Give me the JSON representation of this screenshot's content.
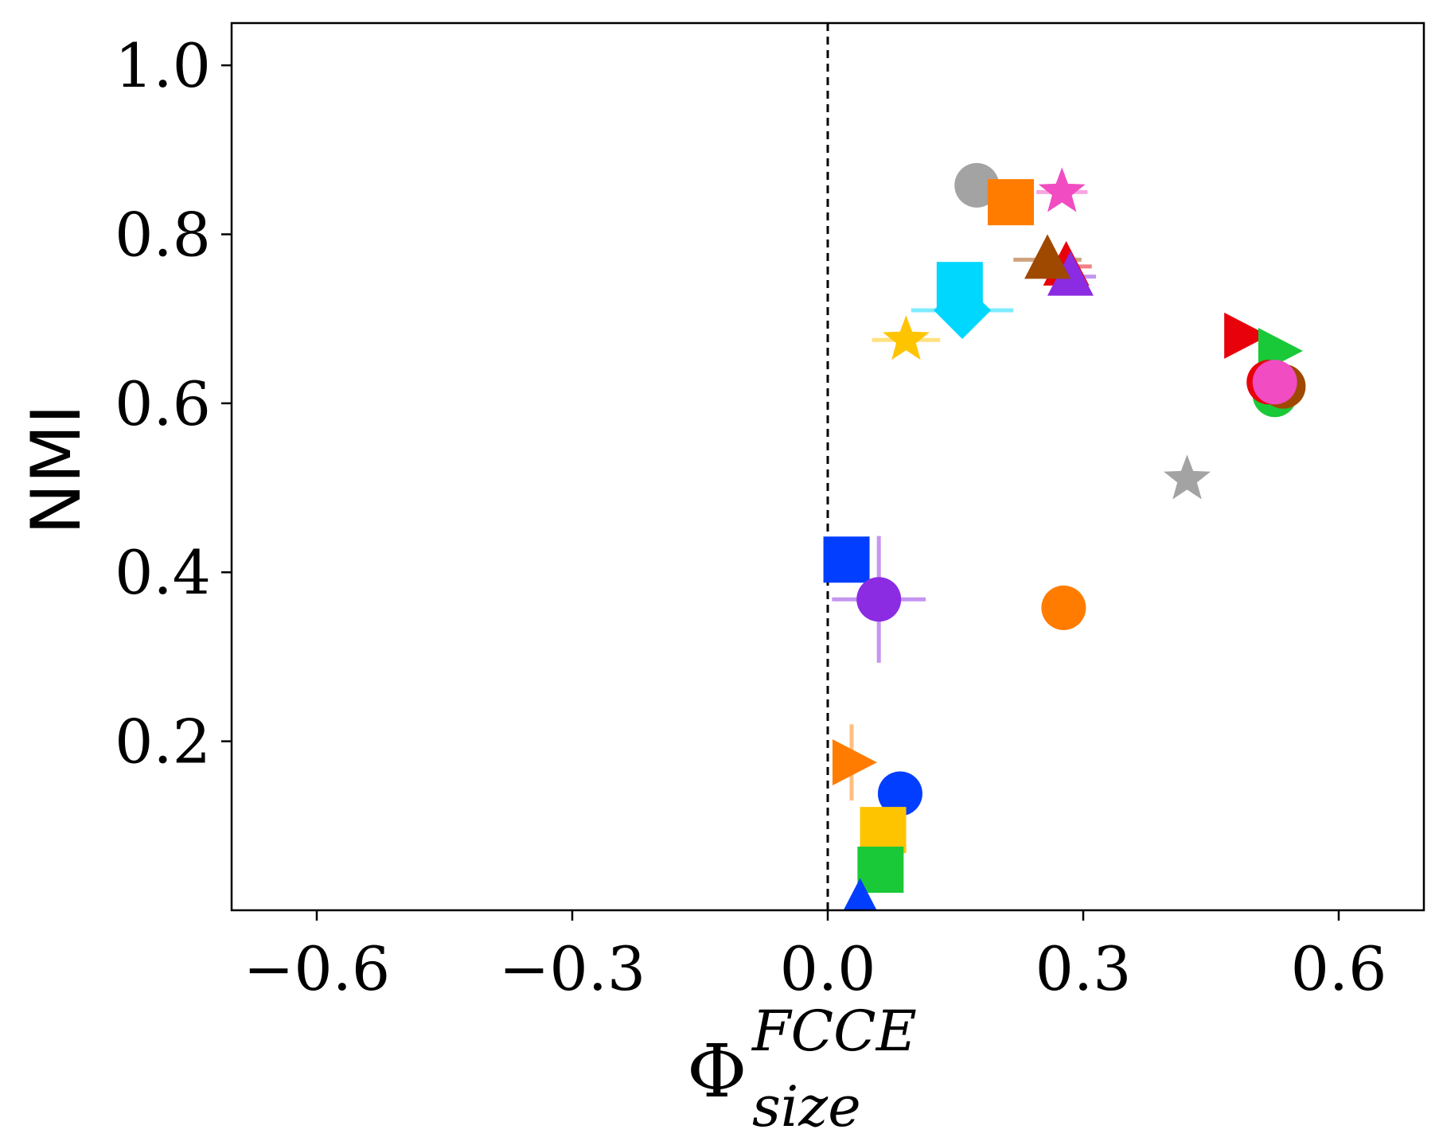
{
  "chart_data": {
    "type": "scatter",
    "title": "",
    "xlabel": {
      "base": "Φ",
      "superscript": "FCCE",
      "subscript": "size"
    },
    "ylabel": "NMI",
    "xlim": [
      -0.7,
      0.7
    ],
    "ylim": [
      0.0,
      1.05
    ],
    "xticks": [
      -0.6,
      -0.3,
      0.0,
      0.3,
      0.6
    ],
    "xtick_labels": [
      "−0.6",
      "−0.3",
      "0.0",
      "0.3",
      "0.6"
    ],
    "yticks": [
      0.2,
      0.4,
      0.6,
      0.8,
      1.0
    ],
    "ytick_labels": [
      "0.2",
      "0.4",
      "0.6",
      "0.8",
      "1.0"
    ],
    "reference_line": {
      "x": 0.0,
      "style": "dashed",
      "color": "#000000"
    },
    "grid": false,
    "points": [
      {
        "x": 0.175,
        "y": 0.858,
        "marker": "circle",
        "color": "#a3a3a3"
      },
      {
        "x": 0.215,
        "y": 0.838,
        "marker": "square",
        "color": "#ff7c00",
        "xerr": 0.025
      },
      {
        "x": 0.275,
        "y": 0.85,
        "marker": "star",
        "color": "#f14cc1",
        "xerr": 0.03
      },
      {
        "x": 0.28,
        "y": 0.762,
        "marker": "triangle-up",
        "color": "#e8000b",
        "xerr": 0.03
      },
      {
        "x": 0.285,
        "y": 0.75,
        "marker": "triangle-up",
        "color": "#8b2be2",
        "xerr": 0.03
      },
      {
        "x": 0.258,
        "y": 0.77,
        "marker": "triangle-up",
        "color": "#9f4800",
        "xerr": 0.04
      },
      {
        "x": 0.155,
        "y": 0.74,
        "marker": "square",
        "color": "#00d7ff",
        "xerr": 0.025
      },
      {
        "x": 0.158,
        "y": 0.71,
        "marker": "diamond",
        "color": "#00d7ff",
        "xerr": 0.06
      },
      {
        "x": 0.092,
        "y": 0.675,
        "marker": "star",
        "color": "#ffc400",
        "xerr": 0.04
      },
      {
        "x": 0.488,
        "y": 0.68,
        "marker": "triangle-right",
        "color": "#e8000b",
        "xerr": 0.02
      },
      {
        "x": 0.528,
        "y": 0.662,
        "marker": "triangle-right",
        "color": "#1ac938"
      },
      {
        "x": 0.525,
        "y": 0.61,
        "marker": "circle",
        "color": "#1ac938"
      },
      {
        "x": 0.535,
        "y": 0.62,
        "marker": "circle",
        "color": "#9f4800"
      },
      {
        "x": 0.518,
        "y": 0.625,
        "marker": "circle",
        "color": "#e8000b"
      },
      {
        "x": 0.525,
        "y": 0.625,
        "marker": "circle",
        "color": "#f14cc1"
      },
      {
        "x": 0.422,
        "y": 0.51,
        "marker": "star",
        "color": "#a3a3a3"
      },
      {
        "x": 0.022,
        "y": 0.415,
        "marker": "square",
        "color": "#023eff"
      },
      {
        "x": 0.06,
        "y": 0.368,
        "marker": "circle",
        "color": "#8b2be2",
        "xerr": 0.055,
        "yerr": 0.075
      },
      {
        "x": 0.277,
        "y": 0.358,
        "marker": "circle",
        "color": "#ff7c00"
      },
      {
        "x": 0.028,
        "y": 0.175,
        "marker": "triangle-right",
        "color": "#ff7c00",
        "yerr": 0.045
      },
      {
        "x": 0.085,
        "y": 0.138,
        "marker": "circle",
        "color": "#023eff"
      },
      {
        "x": 0.065,
        "y": 0.095,
        "marker": "square",
        "color": "#ffc400"
      },
      {
        "x": 0.062,
        "y": 0.048,
        "marker": "square",
        "color": "#1ac938"
      },
      {
        "x": 0.038,
        "y": 0.008,
        "marker": "triangle-up",
        "color": "#023eff"
      }
    ]
  }
}
